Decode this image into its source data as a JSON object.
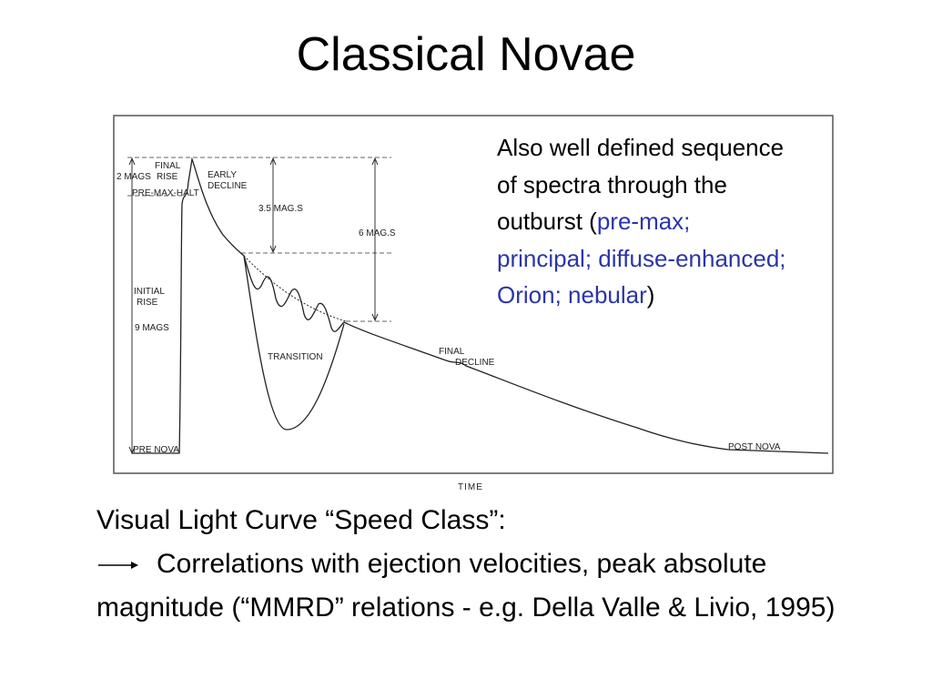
{
  "title": "Classical Novae",
  "figure": {
    "labels": {
      "final_rise": [
        "FINAL",
        "RISE"
      ],
      "two_mags": "2 MAGS",
      "pre_max_halt": "PRE-MAX-HALT",
      "early_decline": [
        "EARLY",
        "DECLINE"
      ],
      "three_half_mags": "3.5 MAG.S",
      "six_mags": "6 MAG.S",
      "initial_rise": [
        "INITIAL",
        "RISE"
      ],
      "nine_mags": "9 MAGS",
      "transition": "TRANSITION",
      "final_decline": [
        "FINAL",
        "DECLINE"
      ],
      "pre_nova": "PRE NOVA",
      "post_nova": "POST NOVA"
    },
    "x_label": "TIME"
  },
  "side_note": {
    "prefix": "Also well defined sequence of spectra through the outburst (",
    "spectra": "pre-max; principal; diffuse-enhanced; Orion; nebular",
    "suffix": ")"
  },
  "body": {
    "heading": "Visual Light Curve “Speed Class”:",
    "text": "Correlations with ejection velocities, peak absolute magnitude (“MMRD” relations - e.g. Della Valle & Livio, 1995)"
  }
}
